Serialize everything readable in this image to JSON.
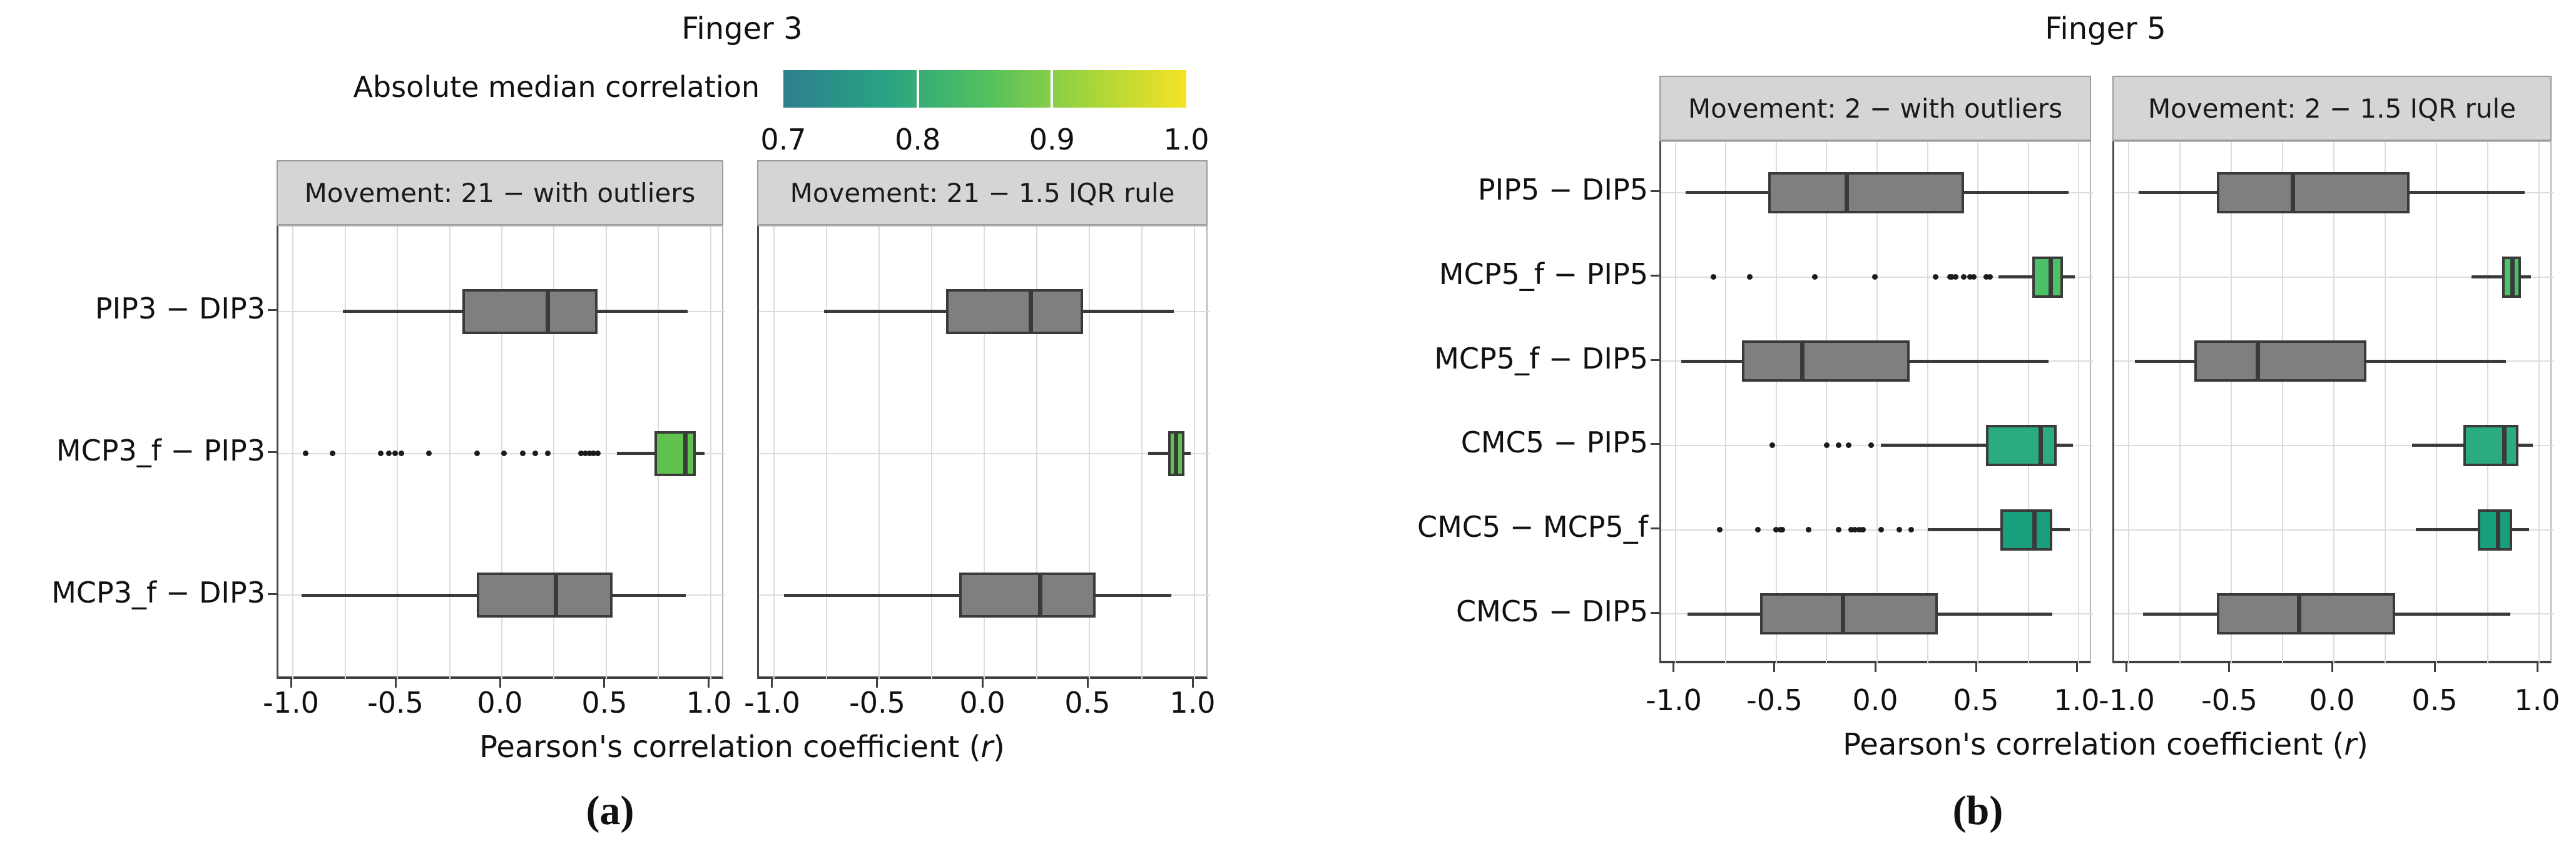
{
  "chart_data": [
    {
      "type": "boxplot",
      "id": "a",
      "title": "Finger 3",
      "caption": "(a)",
      "xlabel": "Pearson's correlation coefficient (r)",
      "xlabel_parts": {
        "pre": "Pearson's correlation coefficient (",
        "italic": "r",
        "post": ")"
      },
      "xlim": [
        -1.07,
        1.07
      ],
      "xtick_values": [
        -1,
        -0.5,
        0,
        0.5,
        1
      ],
      "x_ticks": [
        "-1.0",
        "-0.5",
        "0.0",
        "0.5",
        "1.0"
      ],
      "gridline_step": 0.25,
      "grid": true,
      "legend": {
        "label": "Absolute median correlation",
        "tick_labels": [
          "0.7",
          "0.8",
          "0.9",
          "1.0"
        ],
        "range": [
          0.7,
          1.0
        ],
        "colormap": [
          "#2e7f8e",
          "#28a383",
          "#52bf5f",
          "#a2d53b",
          "#f6e225"
        ]
      },
      "categories": [
        "PIP3 − DIP3",
        "MCP3_f − PIP3",
        "MCP3_f − DIP3"
      ],
      "subplots": [
        {
          "header": "Movement: 21 − with outliers",
          "boxes": [
            {
              "whisker_lo": -0.76,
              "q1": -0.19,
              "median": 0.22,
              "q3": 0.46,
              "whisker_hi": 0.89,
              "fill": "#7f7f7f",
              "outliers": []
            },
            {
              "whisker_lo": 0.55,
              "q1": 0.73,
              "median": 0.88,
              "q3": 0.93,
              "whisker_hi": 0.97,
              "fill": "#5fc24e",
              "outliers": [
                -0.94,
                -0.81,
                -0.58,
                -0.54,
                -0.51,
                -0.48,
                -0.35,
                -0.12,
                0.01,
                0.1,
                0.16,
                0.22,
                0.38,
                0.4,
                0.42,
                0.44,
                0.46
              ]
            },
            {
              "whisker_lo": -0.96,
              "q1": -0.12,
              "median": 0.26,
              "q3": 0.53,
              "whisker_hi": 0.88,
              "fill": "#7f7f7f",
              "outliers": []
            }
          ]
        },
        {
          "header": "Movement: 21 − 1.5 IQR rule",
          "boxes": [
            {
              "whisker_lo": -0.76,
              "q1": -0.18,
              "median": 0.22,
              "q3": 0.47,
              "whisker_hi": 0.9,
              "fill": "#7f7f7f",
              "outliers": []
            },
            {
              "whisker_lo": 0.78,
              "q1": 0.875,
              "median": 0.91,
              "q3": 0.95,
              "whisker_hi": 0.98,
              "fill": "#5fc24e",
              "outliers": []
            },
            {
              "whisker_lo": -0.95,
              "q1": -0.12,
              "median": 0.265,
              "q3": 0.53,
              "whisker_hi": 0.89,
              "fill": "#7f7f7f",
              "outliers": []
            }
          ]
        }
      ]
    },
    {
      "type": "boxplot",
      "id": "b",
      "title": "Finger 5",
      "caption": "(b)",
      "xlabel": "Pearson's correlation coefficient (r)",
      "xlabel_parts": {
        "pre": "Pearson's correlation coefficient (",
        "italic": "r",
        "post": ")"
      },
      "xlim": [
        -1.07,
        1.07
      ],
      "xtick_values": [
        -1,
        -0.5,
        0,
        0.5,
        1
      ],
      "x_ticks": [
        "-1.0",
        "-0.5",
        "0.0",
        "0.5",
        "1.0"
      ],
      "gridline_step": 0.25,
      "grid": true,
      "legend": null,
      "categories": [
        "PIP5 − DIP5",
        "MCP5_f − PIP5",
        "MCP5_f − DIP5",
        "CMC5 − PIP5",
        "CMC5 − MCP5_f",
        "CMC5 − DIP5"
      ],
      "subplots": [
        {
          "header": "Movement: 2 − with outliers",
          "boxes": [
            {
              "whisker_lo": -0.95,
              "q1": -0.54,
              "median": -0.15,
              "q3": 0.43,
              "whisker_hi": 0.95,
              "fill": "#7f7f7f",
              "outliers": []
            },
            {
              "whisker_lo": 0.6,
              "q1": 0.77,
              "median": 0.86,
              "q3": 0.92,
              "whisker_hi": 0.98,
              "fill": "#4dc167",
              "outliers": [
                -0.81,
                -0.63,
                -0.31,
                -0.01,
                0.29,
                0.36,
                0.37,
                0.39,
                0.43,
                0.46,
                0.48,
                0.54,
                0.56
              ]
            },
            {
              "whisker_lo": -0.97,
              "q1": -0.67,
              "median": -0.37,
              "q3": 0.16,
              "whisker_hi": 0.85,
              "fill": "#7f7f7f",
              "outliers": []
            },
            {
              "whisker_lo": 0.02,
              "q1": 0.54,
              "median": 0.81,
              "q3": 0.89,
              "whisker_hi": 0.97,
              "fill": "#2bab82",
              "outliers": [
                -0.52,
                -0.25,
                -0.19,
                -0.14,
                -0.03
              ]
            },
            {
              "whisker_lo": 0.25,
              "q1": 0.61,
              "median": 0.78,
              "q3": 0.87,
              "whisker_hi": 0.955,
              "fill": "#18a07d",
              "outliers": [
                -0.78,
                -0.59,
                -0.5,
                -0.48,
                -0.47,
                -0.34,
                -0.19,
                -0.13,
                -0.11,
                -0.09,
                -0.07,
                0.02,
                0.11,
                0.17
              ]
            },
            {
              "whisker_lo": -0.94,
              "q1": -0.58,
              "median": -0.17,
              "q3": 0.3,
              "whisker_hi": 0.87,
              "fill": "#7f7f7f",
              "outliers": []
            }
          ]
        },
        {
          "header": "Movement: 2 − 1.5 IQR rule",
          "boxes": [
            {
              "whisker_lo": -0.95,
              "q1": -0.57,
              "median": -0.2,
              "q3": 0.37,
              "whisker_hi": 0.93,
              "fill": "#7f7f7f",
              "outliers": []
            },
            {
              "whisker_lo": 0.67,
              "q1": 0.82,
              "median": 0.87,
              "q3": 0.91,
              "whisker_hi": 0.96,
              "fill": "#4dc167",
              "outliers": []
            },
            {
              "whisker_lo": -0.97,
              "q1": -0.68,
              "median": -0.37,
              "q3": 0.16,
              "whisker_hi": 0.84,
              "fill": "#7f7f7f",
              "outliers": []
            },
            {
              "whisker_lo": 0.38,
              "q1": 0.63,
              "median": 0.83,
              "q3": 0.9,
              "whisker_hi": 0.97,
              "fill": "#2bab82",
              "outliers": []
            },
            {
              "whisker_lo": 0.4,
              "q1": 0.7,
              "median": 0.8,
              "q3": 0.87,
              "whisker_hi": 0.95,
              "fill": "#18a07d",
              "outliers": []
            },
            {
              "whisker_lo": -0.93,
              "q1": -0.57,
              "median": -0.17,
              "q3": 0.3,
              "whisker_hi": 0.86,
              "fill": "#7f7f7f",
              "outliers": []
            }
          ]
        }
      ]
    }
  ],
  "styles": {
    "box_edge": "#3a3a3a",
    "grid_color": "#dcdcdc",
    "strip_bg": "#d5d5d5",
    "strip_border": "#9c9c9c",
    "panel_border": "#b4b4b4",
    "axis_line": "#3f3f3f",
    "outlier_color": "#1b1b1b",
    "gray_fill": "#7f7f7f"
  }
}
